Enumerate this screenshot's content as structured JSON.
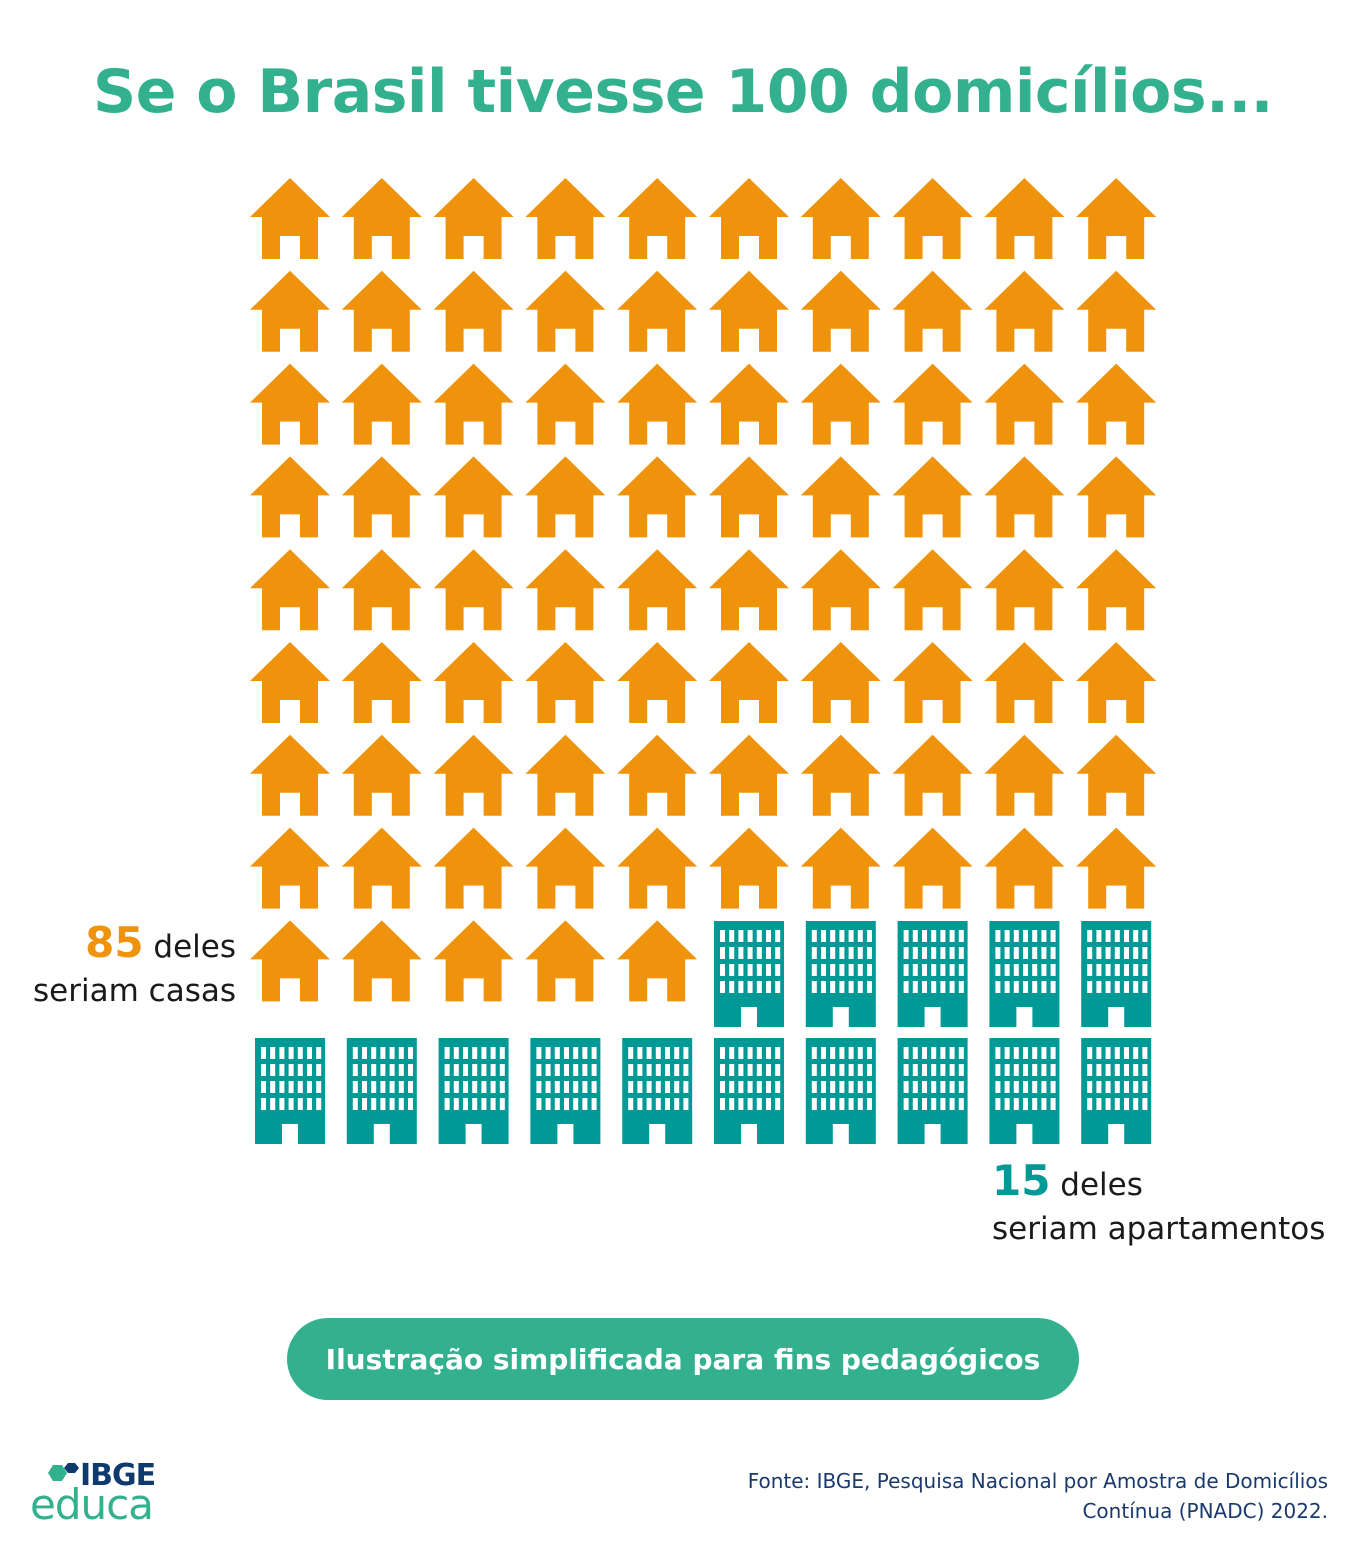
{
  "title": "Se o Brasil tivesse 100 domicílios...",
  "colors": {
    "title": "#33b08e",
    "casa": "#f0930c",
    "apartamento": "#009a96",
    "pill": "#33b08e",
    "logo_ibge": "#0e3a6e",
    "logo_educa": "#33b08e",
    "source": "#1a3a6e"
  },
  "chart_data": {
    "type": "pictogram",
    "total": 100,
    "columns": 10,
    "series": [
      {
        "name": "casas",
        "value": 85,
        "icon": "house-icon"
      },
      {
        "name": "apartamentos",
        "value": 15,
        "icon": "building-icon"
      }
    ]
  },
  "labels": {
    "casas": {
      "number": "85",
      "text1": " deles",
      "text2": "seriam casas"
    },
    "apartamentos": {
      "number": "15",
      "text1": " deles",
      "text2": "seriam apartamentos"
    }
  },
  "note": "Ilustração simplificada para fins pedagógicos",
  "logo": {
    "top": "IBGE",
    "bottom": "educa"
  },
  "source": {
    "line1": "Fonte: IBGE, Pesquisa Nacional por Amostra de Domicílios",
    "line2": "Contínua (PNADC) 2022."
  }
}
